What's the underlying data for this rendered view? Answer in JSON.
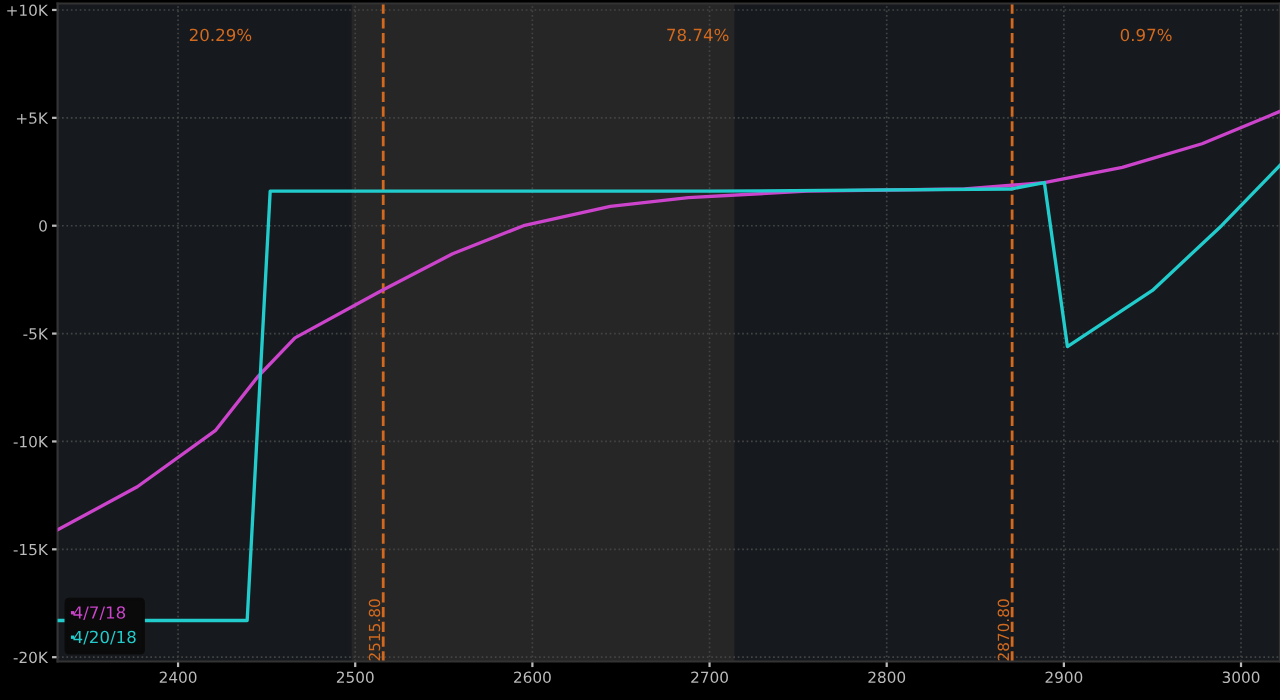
{
  "chart_data": {
    "type": "line",
    "x": [
      2332,
      2377,
      2421,
      2445,
      2466,
      2515,
      2555,
      2595,
      2644,
      2688,
      2755,
      2844,
      2889,
      2933,
      2978,
      3022
    ],
    "series": [
      {
        "name": "4/7/18",
        "color": "#cc44cc",
        "values": [
          -14.1,
          -12.1,
          -9.5,
          -7.0,
          -5.2,
          -3.0,
          -1.3,
          0,
          0.9,
          1.3,
          1.6,
          1.7,
          2.0,
          2.7,
          3.8,
          5.3
        ]
      },
      {
        "name": "4/20/18",
        "color": "#22cccc",
        "x": [
          2332,
          2439,
          2452,
          2700,
          2870,
          2889,
          2902,
          2950,
          2989,
          3022
        ],
        "values": [
          -18.3,
          -18.3,
          1.6,
          1.6,
          1.7,
          2.0,
          -5.6,
          -3.0,
          0,
          2.8
        ]
      }
    ],
    "xlim": [
      2332,
      3022
    ],
    "ylim": [
      -20.2,
      10.3
    ],
    "xticks": [
      2400,
      2500,
      2600,
      2700,
      2800,
      2900,
      3000
    ],
    "yticks": [
      {
        "value": 10,
        "label": "+10K"
      },
      {
        "value": 5,
        "label": "+5K"
      },
      0,
      {
        "value": -5,
        "label": "-5K"
      },
      {
        "value": -10,
        "label": "-10K"
      },
      {
        "value": -15,
        "label": "-15K"
      },
      {
        "value": -20,
        "label": "-20K"
      }
    ],
    "ref_lines": [
      {
        "axis": "x",
        "value": 2515.8,
        "label": "2515.80",
        "color": "#d2691e",
        "line_style": "dashed"
      },
      {
        "axis": "x",
        "value": 2870.8,
        "label": "2870.80",
        "color": "#d2691e",
        "line_style": "dashed"
      }
    ],
    "bands": [
      {
        "axis": "x",
        "from": 2498,
        "to": 2714,
        "color": "#262626"
      }
    ],
    "annotations": [
      "20.29%",
      "78.74%",
      "0.97%"
    ],
    "grid": true,
    "legend": "bottom left",
    "line_style": "solid",
    "marker": "none"
  }
}
